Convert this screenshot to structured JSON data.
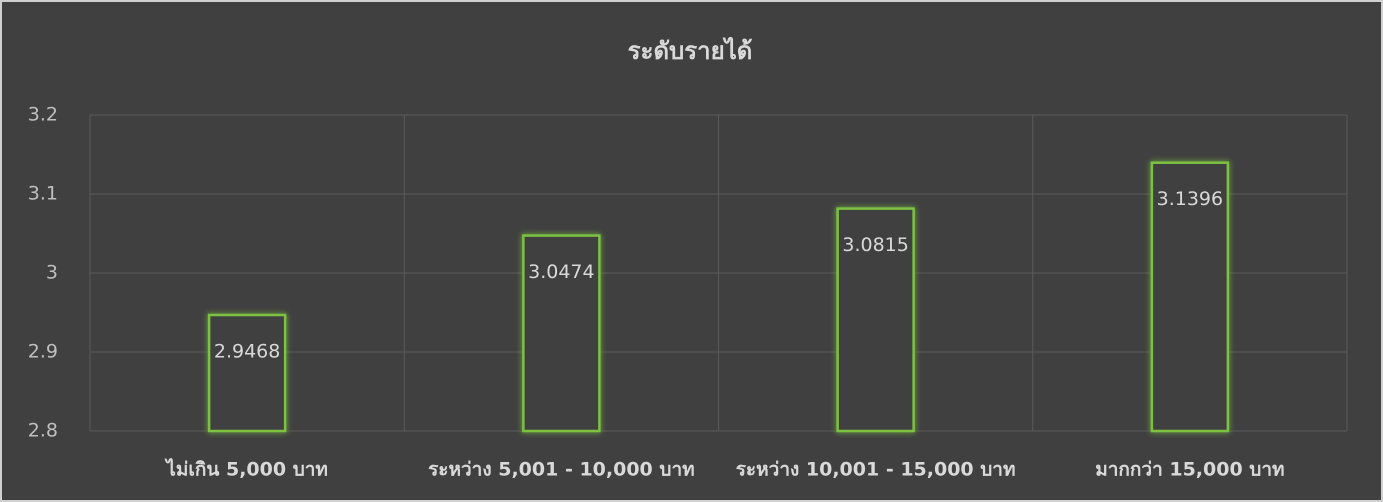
{
  "chart_data": {
    "type": "bar",
    "title": "ระดับรายได้",
    "categories": [
      "ไม่เกิน 5,000 บาท",
      "ระหว่าง 5,001 - 10,000 บาท",
      "ระหว่าง 10,001 - 15,000 บาท",
      "มากกว่า 15,000 บาท"
    ],
    "values": [
      2.9468,
      3.0474,
      3.0815,
      3.1396
    ],
    "color": "#7dc142",
    "ylim": [
      2.8,
      3.2
    ],
    "yticks": [
      2.8,
      2.9,
      3,
      3.1,
      3.2
    ],
    "grid": true
  }
}
